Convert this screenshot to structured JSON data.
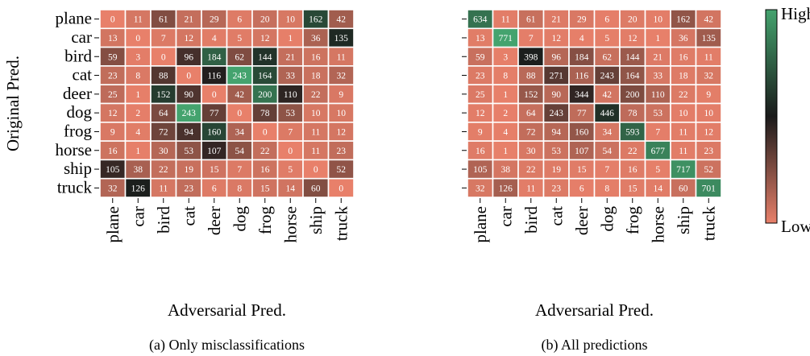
{
  "chart_data": [
    {
      "type": "heatmap",
      "caption": "(a) Only misclassifications",
      "xlabel": "Adversarial Pred.",
      "ylabel": "Original Pred.",
      "x_categories": [
        "plane",
        "car",
        "bird",
        "cat",
        "deer",
        "dog",
        "frog",
        "horse",
        "ship",
        "truck"
      ],
      "y_categories": [
        "plane",
        "car",
        "bird",
        "cat",
        "deer",
        "dog",
        "frog",
        "horse",
        "ship",
        "truck"
      ],
      "values": [
        [
          0,
          11,
          61,
          21,
          29,
          6,
          20,
          10,
          162,
          42
        ],
        [
          13,
          0,
          7,
          12,
          4,
          5,
          12,
          1,
          36,
          135
        ],
        [
          59,
          3,
          0,
          96,
          184,
          62,
          144,
          21,
          16,
          11
        ],
        [
          23,
          8,
          88,
          0,
          116,
          243,
          164,
          33,
          18,
          32
        ],
        [
          25,
          1,
          152,
          90,
          0,
          42,
          200,
          110,
          22,
          9
        ],
        [
          12,
          2,
          64,
          243,
          77,
          0,
          78,
          53,
          10,
          10
        ],
        [
          9,
          4,
          72,
          94,
          160,
          34,
          0,
          7,
          11,
          12
        ],
        [
          16,
          1,
          30,
          53,
          107,
          54,
          22,
          0,
          11,
          23
        ],
        [
          105,
          38,
          22,
          19,
          15,
          7,
          16,
          5,
          0,
          52
        ],
        [
          32,
          126,
          11,
          23,
          6,
          8,
          15,
          14,
          60,
          0
        ]
      ]
    },
    {
      "type": "heatmap",
      "caption": "(b) All predictions",
      "xlabel": "Adversarial Pred.",
      "ylabel": "",
      "x_categories": [
        "plane",
        "car",
        "bird",
        "cat",
        "deer",
        "dog",
        "frog",
        "horse",
        "ship",
        "truck"
      ],
      "y_categories": [
        "plane",
        "car",
        "bird",
        "cat",
        "deer",
        "dog",
        "frog",
        "horse",
        "ship",
        "truck"
      ],
      "values": [
        [
          634,
          11,
          61,
          21,
          29,
          6,
          20,
          10,
          162,
          42
        ],
        [
          13,
          771,
          7,
          12,
          4,
          5,
          12,
          1,
          36,
          135
        ],
        [
          59,
          3,
          398,
          96,
          184,
          62,
          144,
          21,
          16,
          11
        ],
        [
          23,
          8,
          88,
          271,
          116,
          243,
          164,
          33,
          18,
          32
        ],
        [
          25,
          1,
          152,
          90,
          344,
          42,
          200,
          110,
          22,
          9
        ],
        [
          12,
          2,
          64,
          243,
          77,
          446,
          78,
          53,
          10,
          10
        ],
        [
          9,
          4,
          72,
          94,
          160,
          34,
          593,
          7,
          11,
          12
        ],
        [
          16,
          1,
          30,
          53,
          107,
          54,
          22,
          677,
          11,
          23
        ],
        [
          105,
          38,
          22,
          19,
          15,
          7,
          16,
          5,
          717,
          52
        ],
        [
          32,
          126,
          11,
          23,
          6,
          8,
          15,
          14,
          60,
          701
        ]
      ]
    }
  ],
  "colorbar": {
    "high_label": "High",
    "low_label": "Low",
    "colors": {
      "low": "#e8806a",
      "mid": "#1a1a1a",
      "high": "#44a36e"
    }
  }
}
